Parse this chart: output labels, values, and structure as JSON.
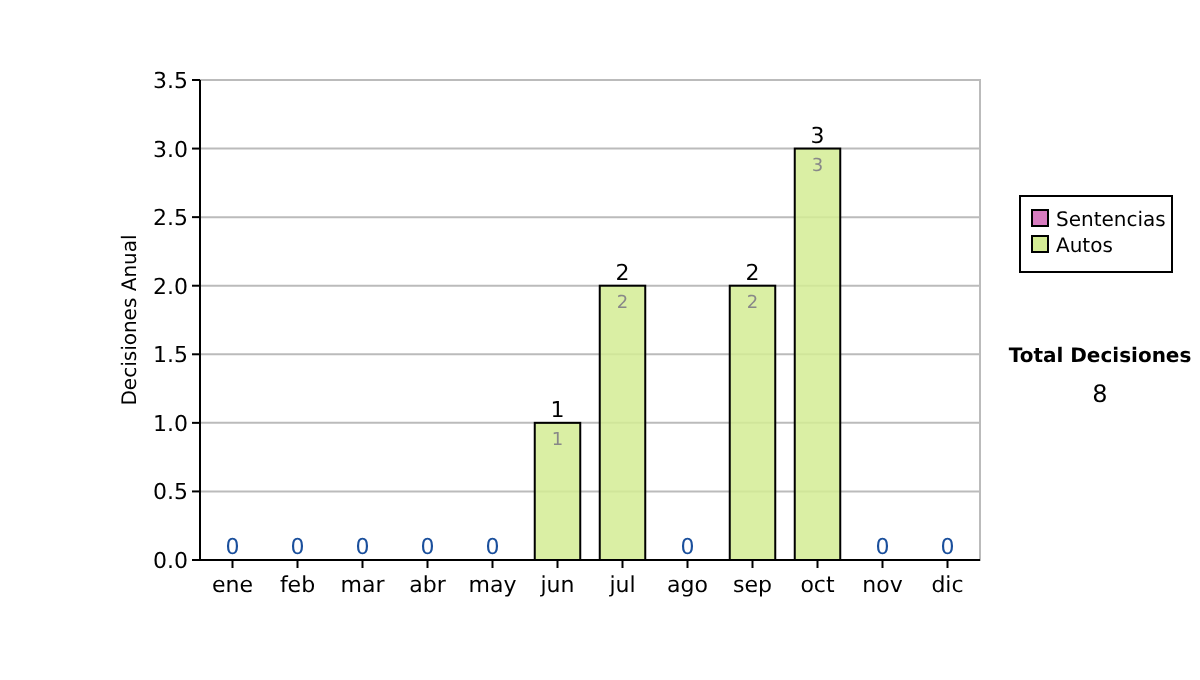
{
  "chart_data": {
    "type": "bar",
    "stacked": true,
    "ylabel": "Decisiones Anual",
    "categories": [
      "ene",
      "feb",
      "mar",
      "abr",
      "may",
      "jun",
      "jul",
      "ago",
      "sep",
      "oct",
      "nov",
      "dic"
    ],
    "series": [
      {
        "name": "Sentencias",
        "color": "#d87cc0",
        "values": [
          0,
          0,
          0,
          0,
          0,
          0,
          0,
          0,
          0,
          0,
          0,
          0
        ]
      },
      {
        "name": "Autos",
        "color": "#d4ec94",
        "values": [
          0,
          0,
          0,
          0,
          0,
          1,
          2,
          0,
          2,
          3,
          0,
          0
        ],
        "value_labels": [
          null,
          null,
          null,
          null,
          null,
          "1",
          "2",
          null,
          "2",
          "3",
          null,
          null
        ]
      }
    ],
    "totals": [
      "0",
      "0",
      "0",
      "0",
      "0",
      "1",
      "2",
      "0",
      "2",
      "3",
      "0",
      "0"
    ],
    "ylim": [
      0,
      3.5
    ],
    "yticks": [
      {
        "value": 0,
        "label": "0.0"
      },
      {
        "value": 0.5,
        "label": "0.5"
      },
      {
        "value": 1,
        "label": "1.0"
      },
      {
        "value": 1.5,
        "label": "1.5"
      },
      {
        "value": 2,
        "label": "2.0"
      },
      {
        "value": 2.5,
        "label": "2.5"
      },
      {
        "value": 3,
        "label": "3.0"
      },
      {
        "value": 3.5,
        "label": "3.5"
      }
    ],
    "grid": "y",
    "legend": "right",
    "annotations": [
      "Total Decisiones",
      "8"
    ]
  }
}
